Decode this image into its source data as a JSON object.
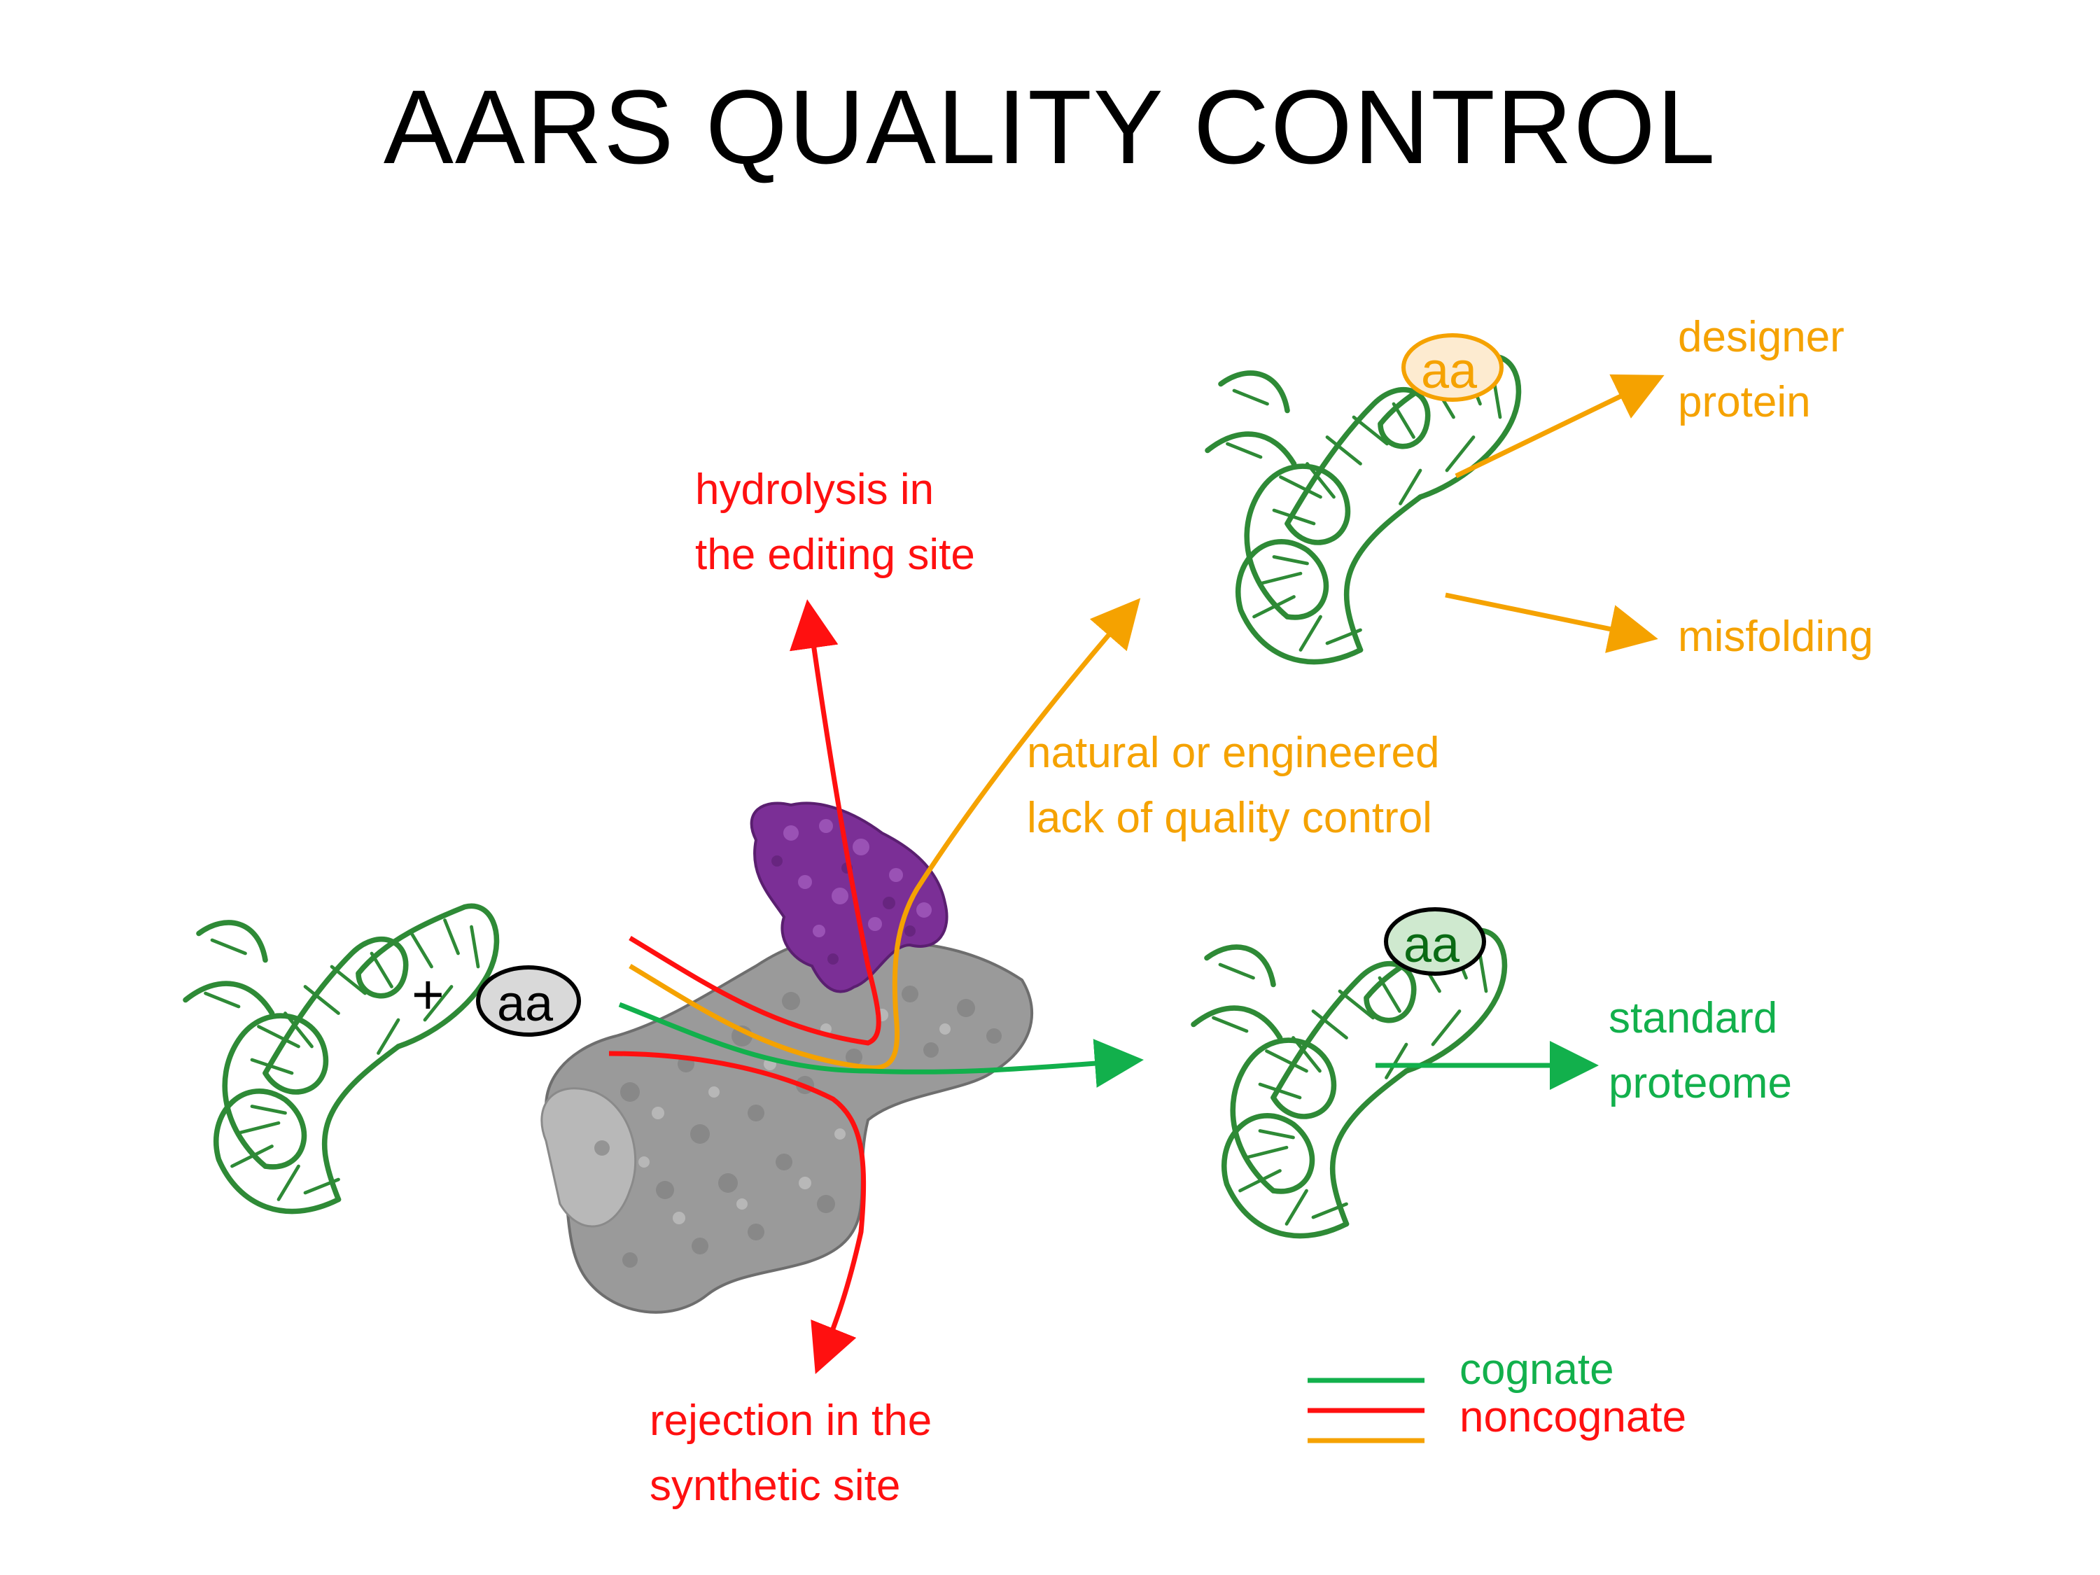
{
  "title": "AARS QUALITY CONTROL",
  "plus_sign": "+",
  "aa_label": "aa",
  "labels": {
    "hydrolysis": [
      "hydrolysis in",
      "the editing site"
    ],
    "rejection": [
      "rejection in the",
      "synthetic site"
    ],
    "lack_qc": [
      "natural or engineered",
      "lack of quality control"
    ],
    "designer": [
      "designer",
      "protein"
    ],
    "misfolding": "misfolding",
    "standard": [
      "standard",
      "proteome"
    ]
  },
  "legend": [
    {
      "label": "cognate",
      "color": "#12b04c"
    },
    {
      "label": "noncognate",
      "color": "#ff1010"
    },
    {
      "label": "",
      "color": "#f5a200"
    }
  ],
  "colors": {
    "cognate": "#12b04c",
    "noncognate_red": "#ff1010",
    "noncognate_orange": "#f5a200",
    "trna": "#2e8a36",
    "enzyme": "#9a9a9a",
    "editing_domain": "#7b2f96",
    "aa_start_fill": "#d9d9d9",
    "aa_green_fill": "#cfe9cf",
    "aa_orange_fill": "#fdebd0"
  },
  "icons": [
    "trna-icon",
    "enzyme-surface-icon",
    "editing-domain-icon"
  ]
}
